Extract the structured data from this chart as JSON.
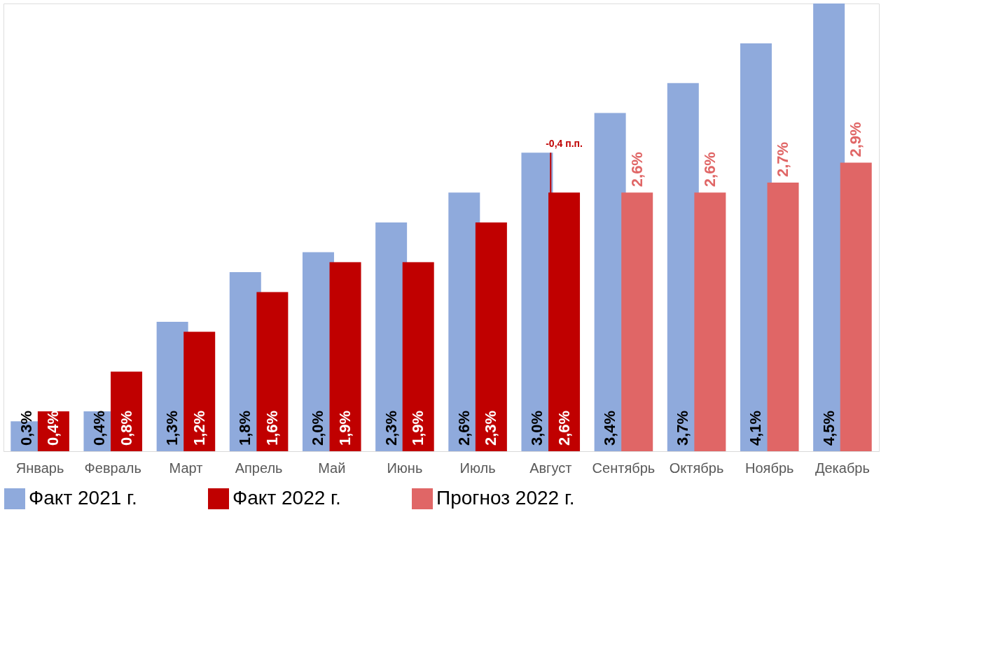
{
  "chart_data": {
    "type": "bar",
    "categories": [
      "Январь",
      "Февраль",
      "Март",
      "Апрель",
      "Май",
      "Июнь",
      "Июль",
      "Август",
      "Сентябрь",
      "Октябрь",
      "Ноябрь",
      "Декабрь"
    ],
    "series": [
      {
        "name": "Факт 2021 г.",
        "color": "#8faadc",
        "values": [
          0.3,
          0.4,
          1.3,
          1.8,
          2.0,
          2.3,
          2.6,
          3.0,
          3.4,
          3.7,
          4.1,
          4.5
        ],
        "value_labels": [
          "0,3%",
          "0,4%",
          "1,3%",
          "1,8%",
          "2,0%",
          "2,3%",
          "2,6%",
          "3,0%",
          "3,4%",
          "3,7%",
          "4,1%",
          "4,5%"
        ]
      },
      {
        "name": "Факт 2022 г.",
        "color": "#c00000",
        "values": [
          0.4,
          0.8,
          1.2,
          1.6,
          1.9,
          1.9,
          2.3,
          2.6,
          null,
          null,
          null,
          null
        ],
        "value_labels": [
          "0,4%",
          "0,8%",
          "1,2%",
          "1,6%",
          "1,9%",
          "1,9%",
          "2,3%",
          "2,6%",
          null,
          null,
          null,
          null
        ]
      },
      {
        "name": "Прогноз 2022 г.",
        "color": "#e06666",
        "values": [
          null,
          null,
          null,
          null,
          null,
          null,
          null,
          null,
          2.6,
          2.6,
          2.7,
          2.9
        ],
        "value_labels": [
          null,
          null,
          null,
          null,
          null,
          null,
          null,
          null,
          "2,6%",
          "2,6%",
          "2,7%",
          "2,9%"
        ]
      }
    ],
    "annotations": [
      {
        "text": "-0,4 п.п.",
        "x": "Август",
        "y": 3.0
      }
    ],
    "legend": "bottom",
    "grid": false
  }
}
